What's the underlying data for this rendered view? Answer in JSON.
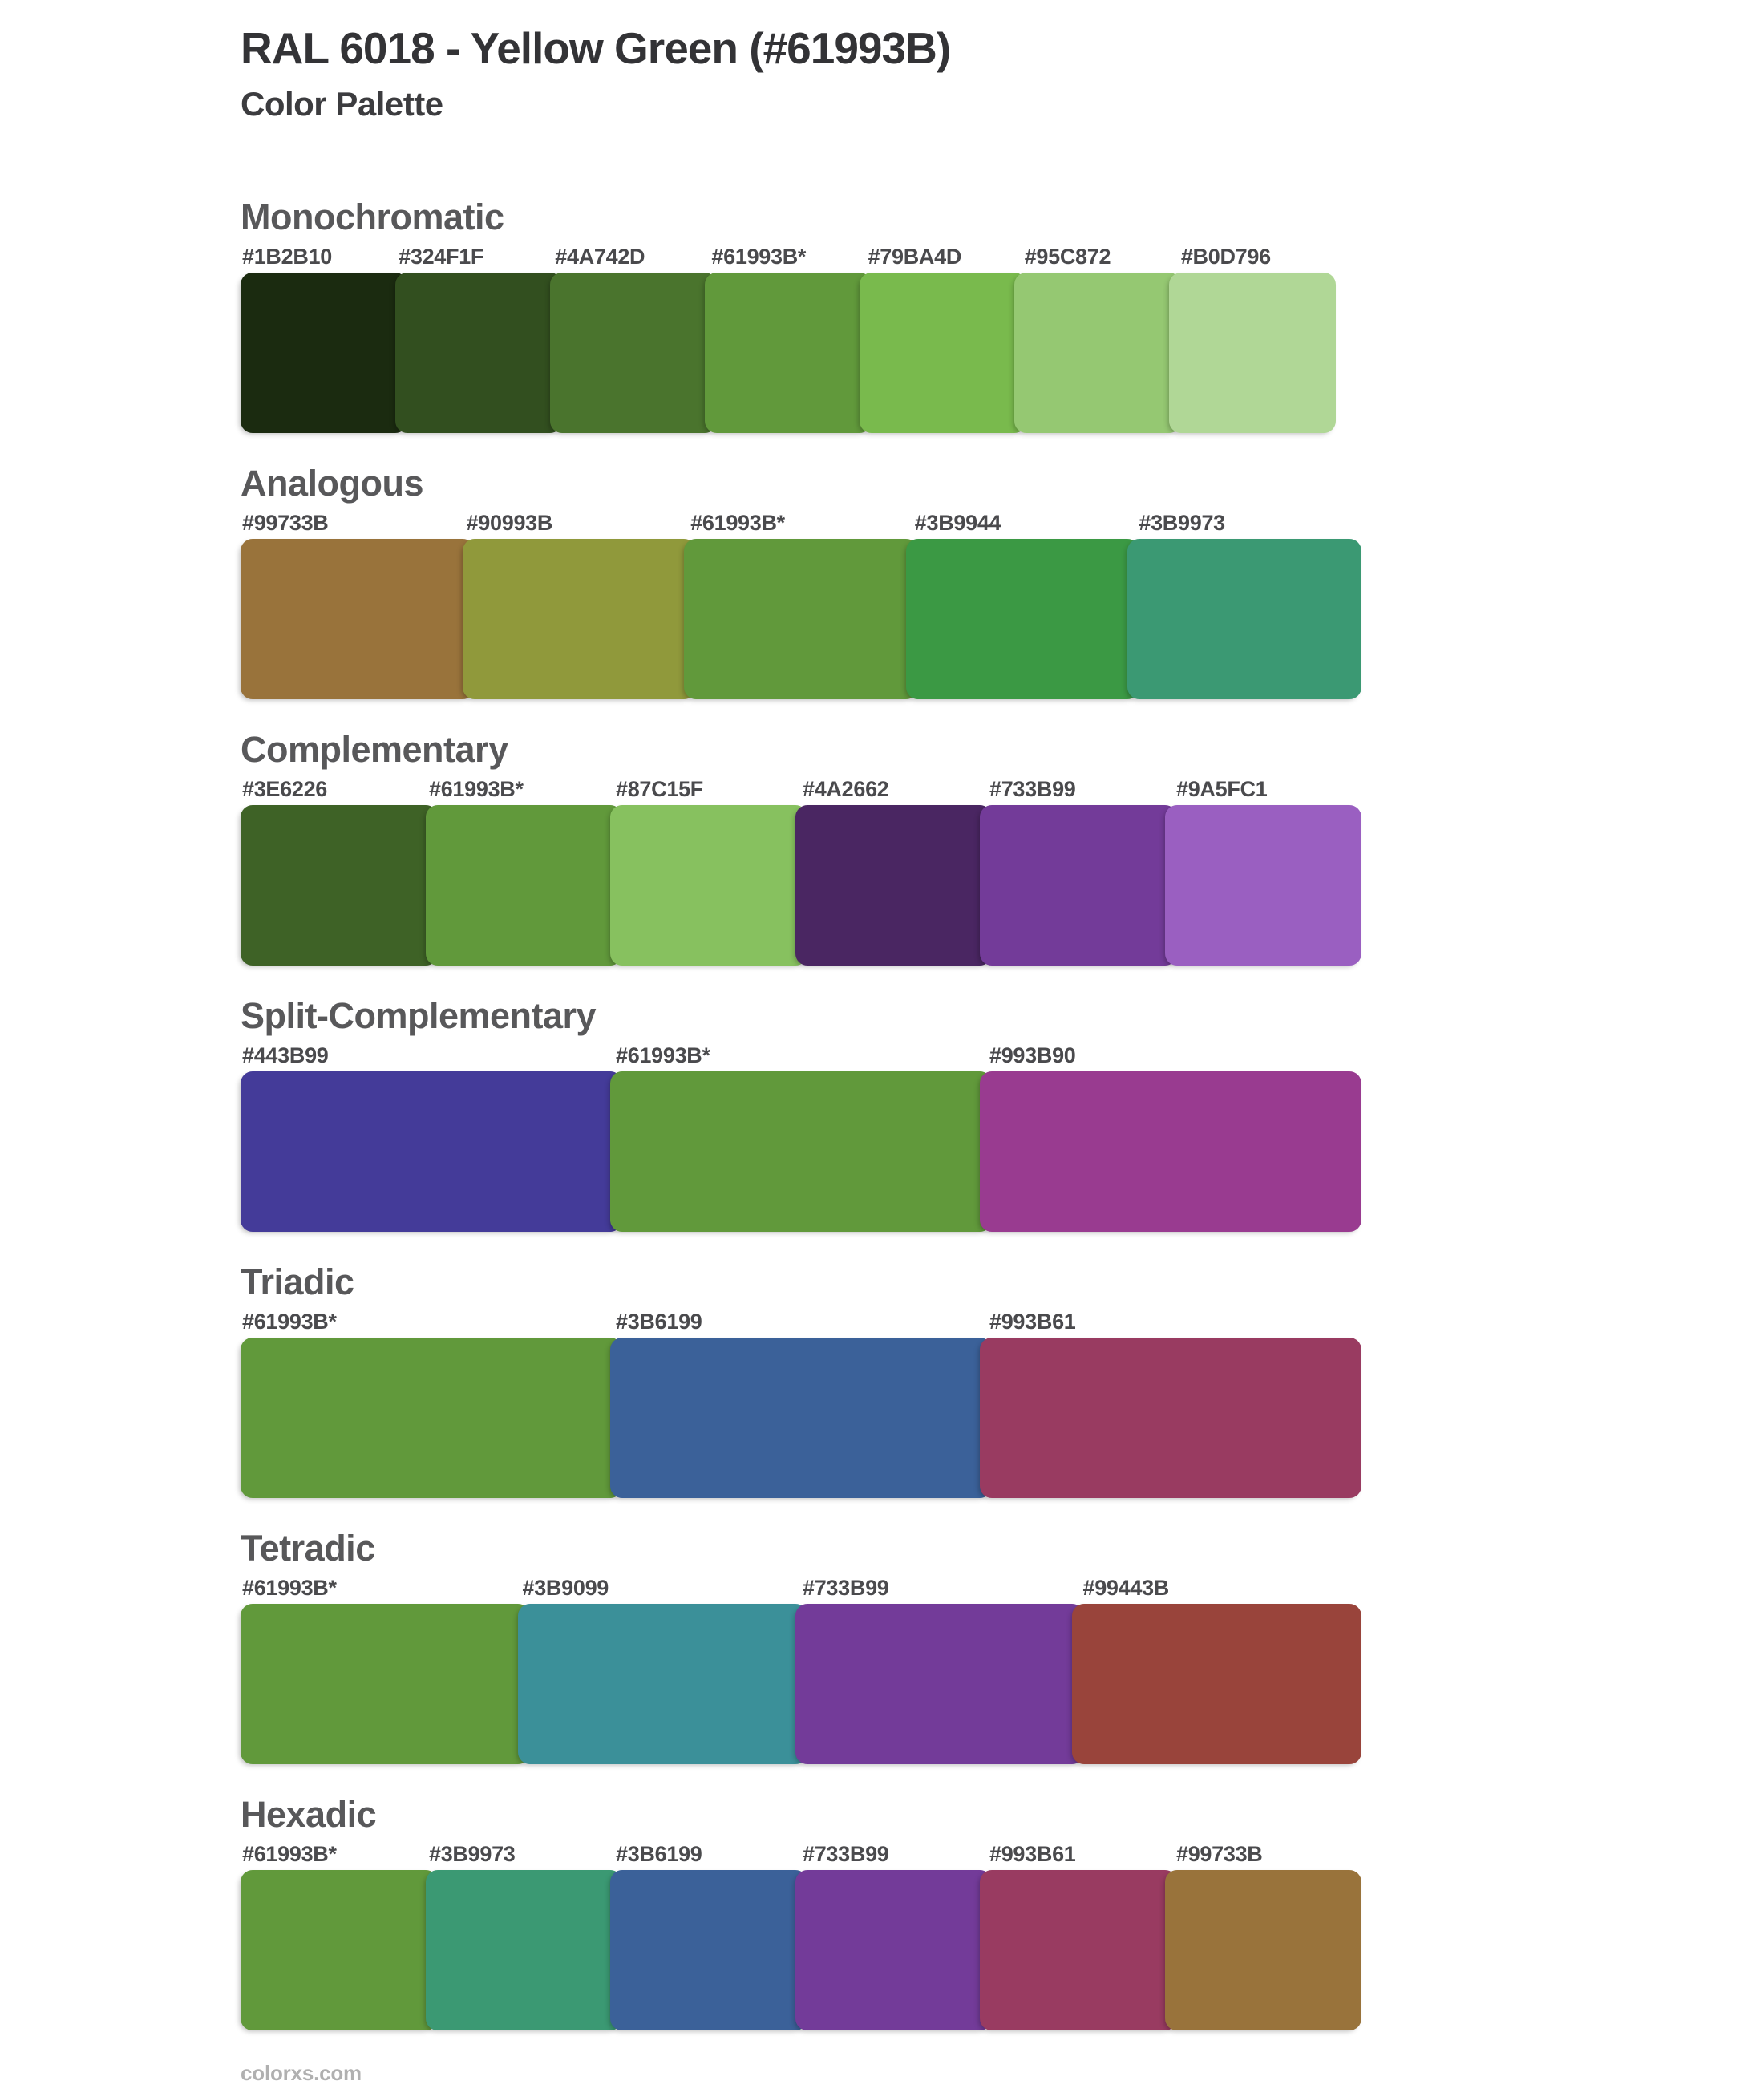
{
  "page": {
    "title": "RAL 6018 - Yellow Green (#61993B)",
    "subtitle": "Color Palette",
    "footer": "colorxs.com",
    "base_color_label": "#61993B*"
  },
  "sections": [
    {
      "name": "Monochromatic",
      "colors": [
        {
          "label": "#1B2B10",
          "hex": "#1B2B10"
        },
        {
          "label": "#324F1F",
          "hex": "#324F1F"
        },
        {
          "label": "#4A742D",
          "hex": "#4A742D"
        },
        {
          "label": "#61993B*",
          "hex": "#61993B"
        },
        {
          "label": "#79BA4D",
          "hex": "#79BA4D"
        },
        {
          "label": "#95C872",
          "hex": "#95C872"
        },
        {
          "label": "#B0D796",
          "hex": "#B0D796"
        }
      ]
    },
    {
      "name": "Analogous",
      "colors": [
        {
          "label": "#99733B",
          "hex": "#99733B"
        },
        {
          "label": "#90993B",
          "hex": "#90993B"
        },
        {
          "label": "#61993B*",
          "hex": "#61993B"
        },
        {
          "label": "#3B9944",
          "hex": "#3B9944"
        },
        {
          "label": "#3B9973",
          "hex": "#3B9973"
        }
      ]
    },
    {
      "name": "Complementary",
      "colors": [
        {
          "label": "#3E6226",
          "hex": "#3E6226"
        },
        {
          "label": "#61993B*",
          "hex": "#61993B"
        },
        {
          "label": "#87C15F",
          "hex": "#87C15F"
        },
        {
          "label": "#4A2662",
          "hex": "#4A2662"
        },
        {
          "label": "#733B99",
          "hex": "#733B99"
        },
        {
          "label": "#9A5FC1",
          "hex": "#9A5FC1"
        }
      ]
    },
    {
      "name": "Split-Complementary",
      "colors": [
        {
          "label": "#443B99",
          "hex": "#443B99"
        },
        {
          "label": "#61993B*",
          "hex": "#61993B"
        },
        {
          "label": "#993B90",
          "hex": "#993B90"
        }
      ]
    },
    {
      "name": "Triadic",
      "colors": [
        {
          "label": "#61993B*",
          "hex": "#61993B"
        },
        {
          "label": "#3B6199",
          "hex": "#3B6199"
        },
        {
          "label": "#993B61",
          "hex": "#993B61"
        }
      ]
    },
    {
      "name": "Tetradic",
      "colors": [
        {
          "label": "#61993B*",
          "hex": "#61993B"
        },
        {
          "label": "#3B9099",
          "hex": "#3B9099"
        },
        {
          "label": "#733B99",
          "hex": "#733B99"
        },
        {
          "label": "#99443B",
          "hex": "#99443B"
        }
      ]
    },
    {
      "name": "Hexadic",
      "colors": [
        {
          "label": "#61993B*",
          "hex": "#61993B"
        },
        {
          "label": "#3B9973",
          "hex": "#3B9973"
        },
        {
          "label": "#3B6199",
          "hex": "#3B6199"
        },
        {
          "label": "#733B99",
          "hex": "#733B99"
        },
        {
          "label": "#993B61",
          "hex": "#993B61"
        },
        {
          "label": "#99733B",
          "hex": "#99733B"
        }
      ]
    }
  ]
}
